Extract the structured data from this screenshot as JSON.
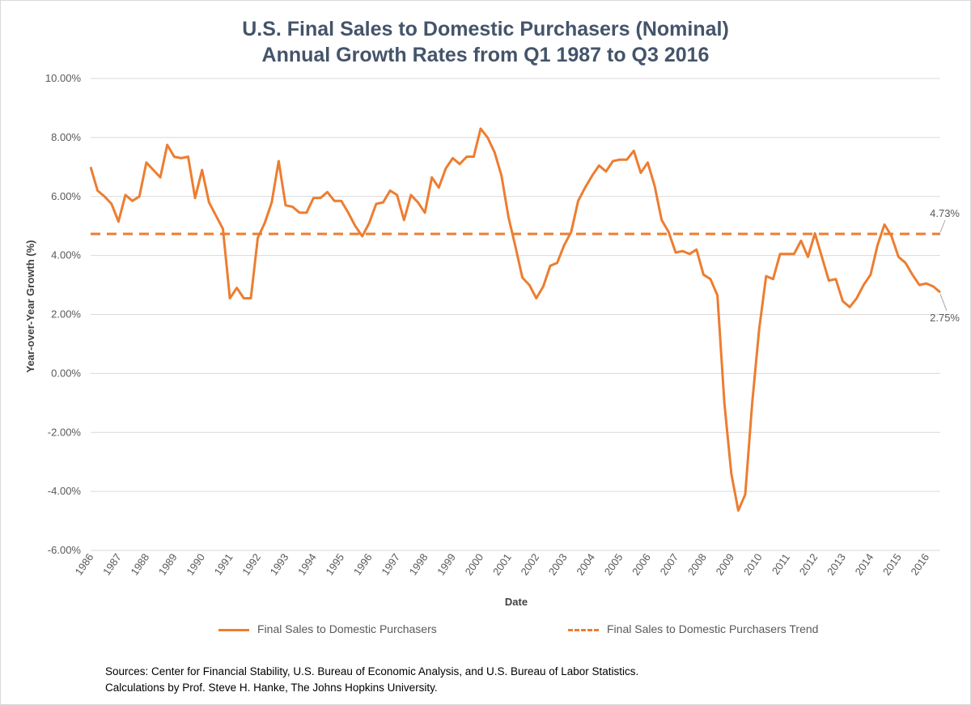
{
  "title_line1": "U.S. Final Sales to Domestic Purchasers (Nominal)",
  "title_line2": "Annual Growth Rates from Q1 1987 to Q3 2016",
  "sources_line1": "Sources: Center for Financial Stability, U.S. Bureau of Economic Analysis, and U.S. Bureau of Labor Statistics.",
  "sources_line2": "Calculations by Prof. Steve H. Hanke, The Johns Hopkins University.",
  "colors": {
    "series": "#ed7d31",
    "grid": "#d9d9d9",
    "text": "#595959",
    "title": "#44546a"
  },
  "chart_data": {
    "type": "line",
    "xlabel": "Date",
    "ylabel": "Year-over-Year Growth (%)",
    "ylim": [
      -6,
      10
    ],
    "ytick_labels": [
      "10.00%",
      "8.00%",
      "6.00%",
      "4.00%",
      "2.00%",
      "0.00%",
      "-2.00%",
      "-4.00%",
      "-6.00%"
    ],
    "x_categories": [
      "1986",
      "1987",
      "1988",
      "1989",
      "1990",
      "1991",
      "1992",
      "1993",
      "1994",
      "1995",
      "1996",
      "1997",
      "1998",
      "1999",
      "2000",
      "2001",
      "2002",
      "2003",
      "2004",
      "2005",
      "2006",
      "2007",
      "2008",
      "2009",
      "2010",
      "2011",
      "2012",
      "2013",
      "2014",
      "2015",
      "2016"
    ],
    "grid": true,
    "legend_position": "bottom",
    "series": [
      {
        "name": "Final Sales to Domestic Purchasers",
        "style": "solid",
        "x": [
          1986.0,
          1986.25,
          1986.5,
          1986.75,
          1987.0,
          1987.25,
          1987.5,
          1987.75,
          1988.0,
          1988.25,
          1988.5,
          1988.75,
          1989.0,
          1989.25,
          1989.5,
          1989.75,
          1990.0,
          1990.25,
          1990.5,
          1990.75,
          1991.0,
          1991.25,
          1991.5,
          1991.75,
          1992.0,
          1992.25,
          1992.5,
          1992.75,
          1993.0,
          1993.25,
          1993.5,
          1993.75,
          1994.0,
          1994.25,
          1994.5,
          1994.75,
          1995.0,
          1995.25,
          1995.5,
          1995.75,
          1996.0,
          1996.25,
          1996.5,
          1996.75,
          1997.0,
          1997.25,
          1997.5,
          1997.75,
          1998.0,
          1998.25,
          1998.5,
          1998.75,
          1999.0,
          1999.25,
          1999.5,
          1999.75,
          2000.0,
          2000.25,
          2000.5,
          2000.75,
          2001.0,
          2001.25,
          2001.5,
          2001.75,
          2002.0,
          2002.25,
          2002.5,
          2002.75,
          2003.0,
          2003.25,
          2003.5,
          2003.75,
          2004.0,
          2004.25,
          2004.5,
          2004.75,
          2005.0,
          2005.25,
          2005.5,
          2005.75,
          2006.0,
          2006.25,
          2006.5,
          2006.75,
          2007.0,
          2007.25,
          2007.5,
          2007.75,
          2008.0,
          2008.25,
          2008.5,
          2008.75,
          2009.0,
          2009.25,
          2009.5,
          2009.75,
          2010.0,
          2010.25,
          2010.5,
          2010.75,
          2011.0,
          2011.25,
          2011.5,
          2011.75,
          2012.0,
          2012.25,
          2012.5,
          2012.75,
          2013.0,
          2013.25,
          2013.5,
          2013.75,
          2014.0,
          2014.25,
          2014.5,
          2014.75,
          2015.0,
          2015.25,
          2015.5,
          2015.75,
          2016.0,
          2016.25,
          2016.5
        ],
        "values": [
          7.0,
          6.2,
          6.0,
          5.75,
          5.15,
          6.05,
          5.85,
          6.0,
          7.15,
          6.9,
          6.65,
          7.75,
          7.35,
          7.3,
          7.35,
          5.95,
          6.9,
          5.8,
          5.35,
          4.9,
          2.55,
          2.9,
          2.55,
          2.55,
          4.6,
          5.1,
          5.8,
          7.2,
          5.7,
          5.65,
          5.45,
          5.45,
          5.95,
          5.95,
          6.15,
          5.85,
          5.85,
          5.45,
          5.0,
          4.65,
          5.1,
          5.75,
          5.8,
          6.2,
          6.05,
          5.2,
          6.05,
          5.8,
          5.45,
          6.65,
          6.3,
          6.95,
          7.3,
          7.1,
          7.35,
          7.35,
          8.3,
          8.0,
          7.5,
          6.7,
          5.3,
          4.3,
          3.25,
          3.0,
          2.55,
          2.95,
          3.65,
          3.75,
          4.35,
          4.8,
          5.85,
          6.3,
          6.7,
          7.05,
          6.85,
          7.2,
          7.25,
          7.25,
          7.55,
          6.8,
          7.15,
          6.35,
          5.2,
          4.8,
          4.1,
          4.15,
          4.05,
          4.2,
          3.35,
          3.2,
          2.65,
          -1.0,
          -3.4,
          -4.65,
          -4.1,
          -1.0,
          1.5,
          3.3,
          3.2,
          4.05,
          4.05,
          4.05,
          4.5,
          3.95,
          4.75,
          3.95,
          3.15,
          3.2,
          2.45,
          2.25,
          2.55,
          3.0,
          3.35,
          4.35,
          5.05,
          4.65,
          3.95,
          3.75,
          3.35,
          3.0,
          3.05,
          2.95,
          2.75
        ]
      },
      {
        "name": "Final Sales to Domestic Purchasers Trend",
        "style": "dashed",
        "x": [
          1986.0,
          2016.5
        ],
        "values": [
          4.73,
          4.73
        ]
      }
    ],
    "annotations": [
      {
        "text": "4.73%",
        "x": 2016.5,
        "y": 4.73
      },
      {
        "text": "2.75%",
        "x": 2016.5,
        "y": 2.75
      }
    ]
  }
}
